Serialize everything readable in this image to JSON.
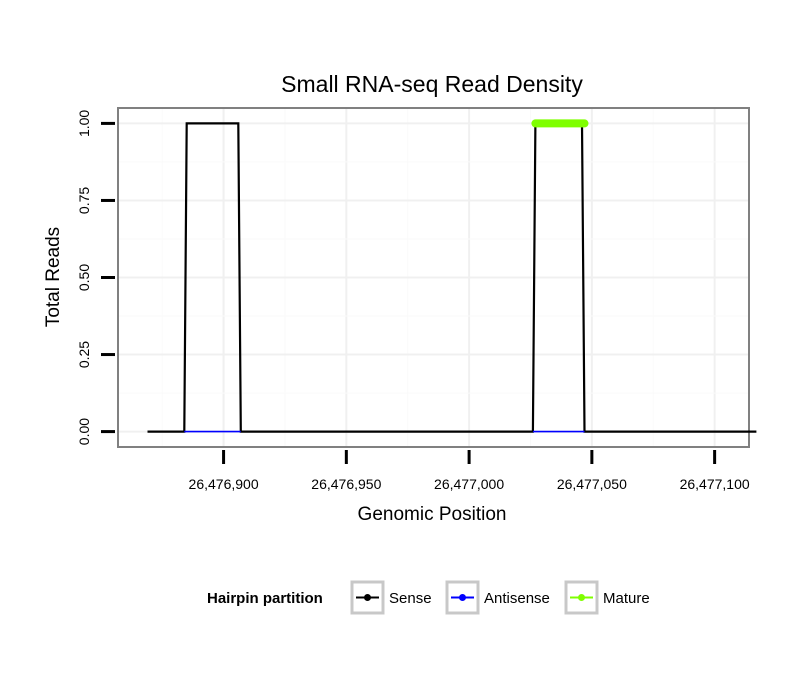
{
  "chart_data": {
    "type": "line",
    "title": "Small RNA-seq Read Density",
    "xlabel": "Genomic Position",
    "ylabel": "Total Reads",
    "xlim": [
      26476857,
      26477114
    ],
    "ylim": [
      -0.05,
      1.05
    ],
    "x_ticks": [
      {
        "value": 26476900,
        "label": "26,476,900"
      },
      {
        "value": 26476950,
        "label": "26,476,950"
      },
      {
        "value": 26477000,
        "label": "26,477,000"
      },
      {
        "value": 26477050,
        "label": "26,477,050"
      },
      {
        "value": 26477100,
        "label": "26,477,100"
      }
    ],
    "y_ticks": [
      {
        "value": 0,
        "label": "0.00"
      },
      {
        "value": 0.25,
        "label": "0.25"
      },
      {
        "value": 0.5,
        "label": "0.50"
      },
      {
        "value": 0.75,
        "label": "0.75"
      },
      {
        "value": 1,
        "label": "1.00"
      }
    ],
    "grid": true,
    "legend": {
      "title": "Hairpin partition",
      "position": "bottom",
      "entries": [
        {
          "name": "Sense",
          "color": "#000000"
        },
        {
          "name": "Antisense",
          "color": "#0000ff"
        },
        {
          "name": "Mature",
          "color": "#7fff00"
        }
      ]
    },
    "series": [
      {
        "name": "Sense",
        "color": "#000000",
        "x": [
          26476869,
          26476884,
          26476885,
          26476906,
          26476907,
          26477026,
          26477027,
          26477046,
          26477047,
          26477117
        ],
        "y": [
          0,
          0,
          1,
          1,
          0,
          0,
          1,
          1,
          0,
          0
        ]
      },
      {
        "name": "Antisense",
        "color": "#0000ff",
        "x": [
          26476884,
          26476907,
          26477026,
          26477047
        ],
        "y": [
          0,
          0,
          0,
          0
        ],
        "segments": [
          [
            26476884,
            26476907
          ],
          [
            26477026,
            26477047
          ]
        ]
      },
      {
        "name": "Mature",
        "color": "#7fff00",
        "x": [
          26477027,
          26477047
        ],
        "y": [
          1,
          1
        ]
      }
    ]
  }
}
